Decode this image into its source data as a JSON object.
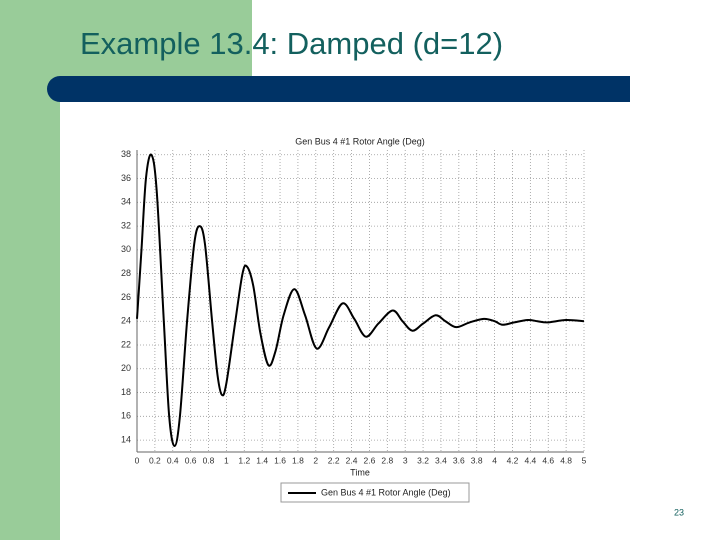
{
  "title": "Example 13.4: Damped (d=12)",
  "page_number": "23",
  "chart_data": {
    "type": "line",
    "title": "Gen Bus 4 #1 Rotor Angle (Deg)",
    "x_label": "Time",
    "x": [
      0,
      0.05,
      0.1,
      0.16,
      0.22,
      0.3,
      0.36,
      0.42,
      0.48,
      0.56,
      0.64,
      0.7,
      0.76,
      0.84,
      0.9,
      0.95,
      1.0,
      1.1,
      1.18,
      1.23,
      1.3,
      1.38,
      1.47,
      1.55,
      1.64,
      1.76,
      1.88,
      2.01,
      2.15,
      2.3,
      2.43,
      2.56,
      2.7,
      2.86,
      2.97,
      3.08,
      3.2,
      3.34,
      3.45,
      3.57,
      3.72,
      3.88,
      4.0,
      4.09,
      4.22,
      4.37,
      4.48,
      4.59,
      4.8,
      5
    ],
    "series": [
      {
        "name": "Gen Bus 4 #1 Rotor Angle (Deg)",
        "color": "#000000",
        "values": [
          24.2,
          30,
          36,
          38,
          35,
          24,
          16,
          13.5,
          16,
          24,
          30.5,
          32,
          30.5,
          24,
          19.5,
          17.8,
          18.8,
          24,
          28,
          28.6,
          27,
          23,
          20.3,
          21.5,
          24.5,
          26.7,
          24.5,
          21.7,
          23.5,
          25.5,
          24.2,
          22.7,
          23.8,
          24.9,
          24,
          23.2,
          23.8,
          24.5,
          24,
          23.5,
          23.9,
          24.2,
          24,
          23.7,
          23.9,
          24.1,
          24,
          23.9,
          24.1,
          24.0
        ]
      }
    ],
    "xlim": [
      0,
      5
    ],
    "xticks": [
      0,
      0.2,
      0.4,
      0.6,
      0.8,
      1,
      1.2,
      1.4,
      1.6,
      1.8,
      2,
      2.2,
      2.4,
      2.6,
      2.8,
      3,
      3.2,
      3.4,
      3.6,
      3.8,
      4,
      4.2,
      4.4,
      4.6,
      4.8,
      5
    ],
    "ylim": [
      13,
      38.4
    ],
    "yticks": [
      14,
      16,
      18,
      20,
      22,
      24,
      26,
      28,
      30,
      32,
      34,
      36,
      38
    ],
    "grid": true,
    "legend": "bottom"
  }
}
